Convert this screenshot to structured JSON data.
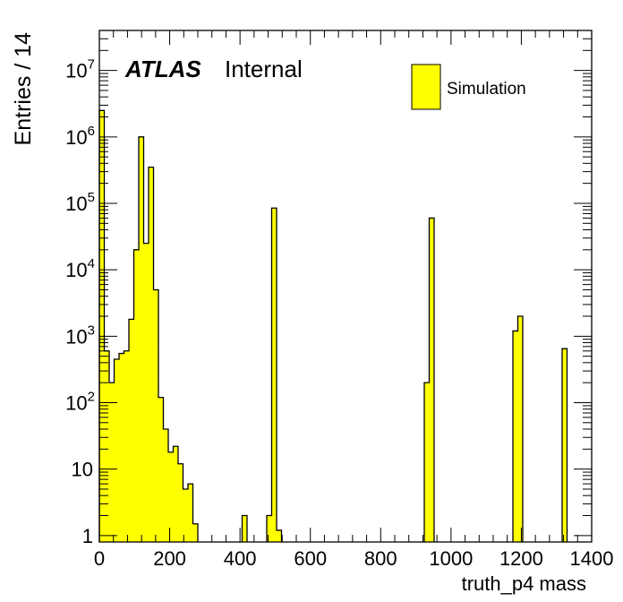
{
  "chart_data": {
    "type": "bar",
    "title": "",
    "xlabel": "truth_p4 mass",
    "ylabel": "Entries / 14",
    "xlim": [
      0,
      1400
    ],
    "ylim": [
      0.8,
      40000000
    ],
    "yscale": "log",
    "bin_width": 14,
    "x_ticks": [
      "0",
      "200",
      "400",
      "600",
      "800",
      "1000",
      "1200",
      "1400"
    ],
    "y_ticks": [
      {
        "value": 1,
        "base": "1",
        "exp": ""
      },
      {
        "value": 10,
        "base": "10",
        "exp": ""
      },
      {
        "value": 100,
        "base": "10",
        "exp": "2"
      },
      {
        "value": 1000,
        "base": "10",
        "exp": "3"
      },
      {
        "value": 10000,
        "base": "10",
        "exp": "4"
      },
      {
        "value": 100000,
        "base": "10",
        "exp": "5"
      },
      {
        "value": 1000000,
        "base": "10",
        "exp": "6"
      },
      {
        "value": 10000000,
        "base": "10",
        "exp": "7"
      }
    ],
    "fill_color": "#ffff00",
    "line_color": "#000000",
    "legend": {
      "entries": [
        "Simulation"
      ],
      "position": "top-right"
    },
    "atlas_label": {
      "experiment": "ATLAS",
      "status": "Internal"
    },
    "series": [
      {
        "name": "Simulation",
        "x": [
          0,
          14,
          28,
          42,
          56,
          70,
          84,
          98,
          112,
          126,
          140,
          154,
          168,
          182,
          196,
          210,
          224,
          238,
          252,
          266,
          406,
          476,
          490,
          504,
          924,
          938,
          1176,
          1190,
          1316
        ],
        "values": [
          2500000,
          600,
          200,
          450,
          550,
          600,
          1800,
          20000,
          1000000,
          25000,
          350000,
          5000,
          120,
          40,
          18,
          22,
          12,
          5,
          6,
          1.5,
          2,
          2,
          85000,
          1.2,
          200,
          60000,
          1200,
          2000,
          650
        ]
      }
    ]
  }
}
